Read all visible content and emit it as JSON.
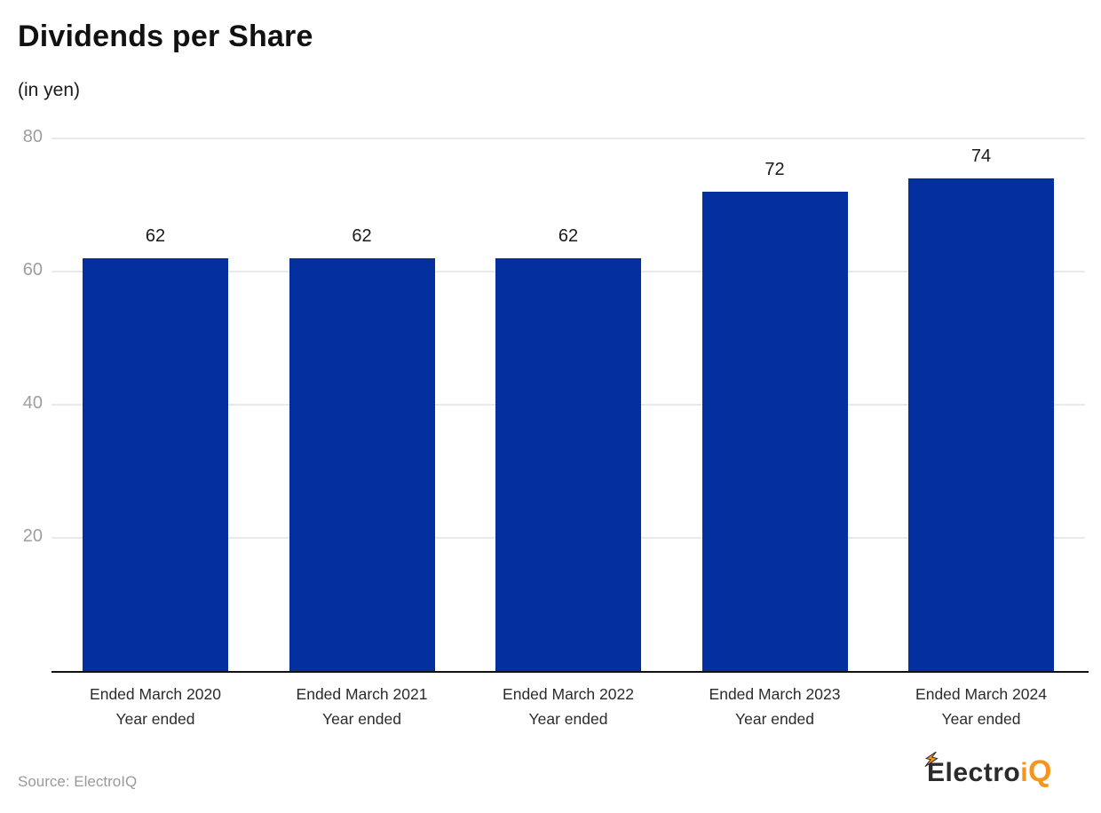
{
  "header": {
    "title": "Dividends per Share",
    "subtitle": "(in yen)"
  },
  "chart_data": {
    "type": "bar",
    "title": "Dividends per Share",
    "subtitle": "(in yen)",
    "categories": [
      "Ended March 2020",
      "Ended March 2021",
      "Ended March 2022",
      "Ended March 2023",
      "Ended March 2024"
    ],
    "category_second_line": "Year ended",
    "values": [
      62,
      62,
      62,
      72,
      74
    ],
    "xlabel": "",
    "ylabel": "",
    "ylim": [
      0,
      80
    ],
    "yticks": [
      20,
      40,
      60,
      80
    ],
    "grid": true,
    "legend_position": "none",
    "bar_color": "#03309e",
    "value_label_color": "#1a1a1a",
    "gridline_color": "#e9e9e9",
    "tick_label_color": "#9e9e9e",
    "axis_line_color": "#111111"
  },
  "footer": {
    "source": "Source: ElectroIQ",
    "logo": {
      "prefix": "Electro",
      "i": "i",
      "q": "Q",
      "bolt_icon": "lightning-bolt",
      "prefix_color": "#2b2b2b",
      "accent_color": "#f7941d"
    }
  }
}
